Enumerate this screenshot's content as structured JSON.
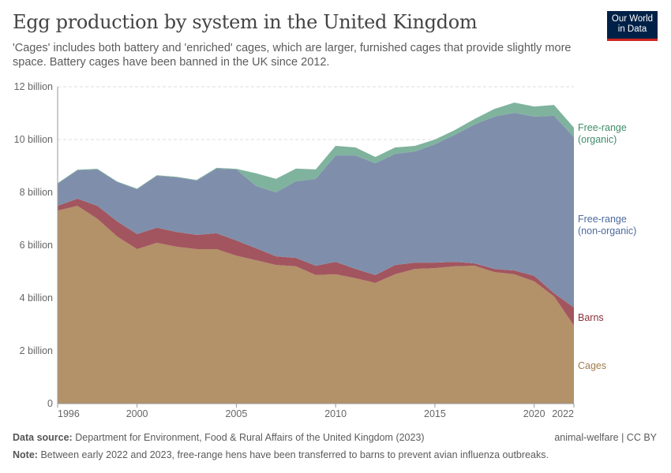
{
  "title": "Egg production by system in the United Kingdom",
  "subtitle": "'Cages' includes both battery and 'enriched' cages, which are larger, furnished cages that provide slightly more space. Battery cages have been banned in the UK since 2012.",
  "logo": {
    "line1": "Our World",
    "line2": "in Data"
  },
  "footer": {
    "source_label": "Data source:",
    "source_text": "Department for Environment, Food & Rural Affairs of the United Kingdom (2023)",
    "license": "animal-welfare | CC BY",
    "note_label": "Note:",
    "note_text": "Between early 2022 and 2023, free-range hens have been transferred to barns to prevent avian influenza outbreaks."
  },
  "chart_data": {
    "type": "area",
    "stacked": true,
    "title": "Egg production by system in the United Kingdom",
    "x": [
      1996,
      1997,
      1998,
      1999,
      2000,
      2001,
      2002,
      2003,
      2004,
      2005,
      2006,
      2007,
      2008,
      2009,
      2010,
      2011,
      2012,
      2013,
      2014,
      2015,
      2016,
      2017,
      2018,
      2019,
      2020,
      2021,
      2022
    ],
    "x_ticks": [
      "1996",
      "2000",
      "2005",
      "2010",
      "2015",
      "2020",
      "2022"
    ],
    "y_ticks": [
      "0",
      "2 billion",
      "4 billion",
      "6 billion",
      "8 billion",
      "10 billion",
      "12 billion"
    ],
    "ylim": [
      0,
      12000000000
    ],
    "grid": "horizontal dashed",
    "legend": "right (inline labels)",
    "unit": "billion",
    "series": [
      {
        "name": "Cages",
        "color": "#b39169",
        "label_color": "#a07c4d",
        "values": [
          7.31,
          7.49,
          7.0,
          6.33,
          5.85,
          6.09,
          5.94,
          5.85,
          5.85,
          5.6,
          5.43,
          5.25,
          5.2,
          4.87,
          4.9,
          4.75,
          4.57,
          4.9,
          5.1,
          5.13,
          5.2,
          5.22,
          4.98,
          4.9,
          4.63,
          4.06,
          2.96
        ]
      },
      {
        "name": "Barns",
        "color": "#a2555f",
        "label_color": "#883039",
        "values": [
          0.18,
          0.27,
          0.49,
          0.57,
          0.57,
          0.57,
          0.56,
          0.54,
          0.6,
          0.58,
          0.45,
          0.33,
          0.32,
          0.35,
          0.47,
          0.35,
          0.3,
          0.35,
          0.24,
          0.21,
          0.17,
          0.09,
          0.12,
          0.14,
          0.21,
          0.12,
          0.68
        ]
      },
      {
        "name": "Free-range (non-organic)",
        "label_lines": [
          "Free-range",
          "(non-organic)"
        ],
        "color": "#7f8fab",
        "label_color": "#4c6a9c",
        "values": [
          0.84,
          1.08,
          1.38,
          1.49,
          1.7,
          1.97,
          2.07,
          2.06,
          2.45,
          2.69,
          2.36,
          2.42,
          2.9,
          3.29,
          4.03,
          4.3,
          4.23,
          4.21,
          4.21,
          4.48,
          4.81,
          5.26,
          5.77,
          5.97,
          6.03,
          6.72,
          6.45
        ]
      },
      {
        "name": "Free-range (organic)",
        "label_lines": [
          "Free-range",
          "(organic)"
        ],
        "color": "#7fb39e",
        "label_color": "#3f8c6a",
        "values": [
          0.02,
          0.02,
          0.02,
          0.02,
          0.02,
          0.02,
          0.02,
          0.02,
          0.03,
          0.02,
          0.48,
          0.51,
          0.48,
          0.36,
          0.36,
          0.3,
          0.24,
          0.24,
          0.21,
          0.18,
          0.18,
          0.21,
          0.29,
          0.39,
          0.38,
          0.41,
          0.36
        ]
      }
    ]
  }
}
